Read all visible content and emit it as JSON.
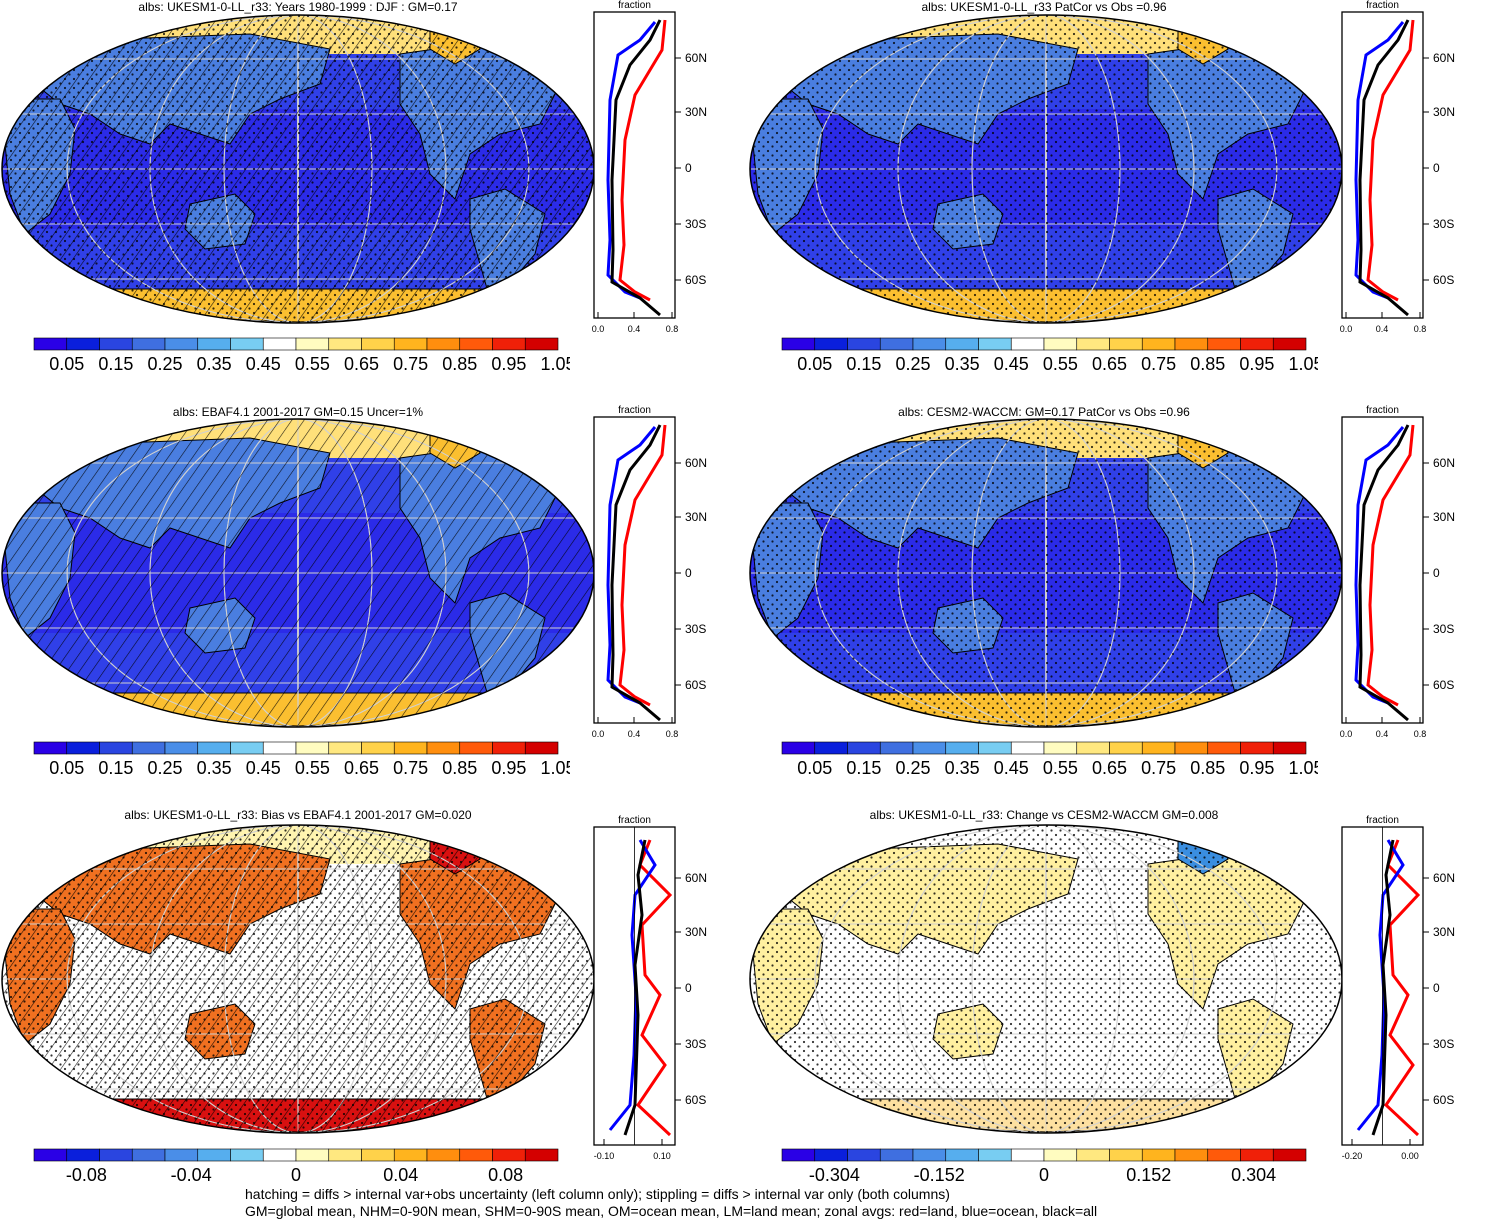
{
  "panels": [
    {
      "id": "p1",
      "title": "albs: UKESM1-0-LL_r33: Years 1980-1999 : DJF : GM=0.17",
      "scale": "abs",
      "hatch": true,
      "stipple": true
    },
    {
      "id": "p2",
      "title": "albs: UKESM1-0-LL_r33 PatCor vs Obs =0.96",
      "scale": "abs",
      "hatch": false,
      "stipple": true
    },
    {
      "id": "p3",
      "title": "albs: EBAF4.1 2001-2017 GM=0.15 Uncer=1%",
      "scale": "abs",
      "hatch": true,
      "stipple": false
    },
    {
      "id": "p4",
      "title": "albs: CESM2-WACCM: GM=0.17 PatCor vs Obs =0.96",
      "scale": "abs",
      "hatch": false,
      "stipple": true
    },
    {
      "id": "p5",
      "title": "albs: UKESM1-0-LL_r33: Bias vs EBAF4.1 2001-2017 GM=0.020",
      "scale": "bias",
      "hatch": true,
      "stipple": true
    },
    {
      "id": "p6",
      "title": "albs: UKESM1-0-LL_r33: Change vs CESM2-WACCM GM=0.008",
      "scale": "change",
      "hatch": false,
      "stipple": true
    }
  ],
  "zonal": {
    "header": "fraction",
    "lat_labels": [
      "60N",
      "30N",
      "0",
      "30S",
      "60S"
    ],
    "abs_ticks": [
      "0.0",
      "0.4",
      "0.8"
    ],
    "bias_ticks": [
      "-0.10",
      "0.10"
    ],
    "change_ticks": [
      "-0.20",
      "0.00"
    ],
    "line_colors": {
      "land": "#ff0000",
      "ocean": "#0000ff",
      "all": "#000000"
    }
  },
  "colorbars": {
    "abs_labels": [
      "0.05",
      "0.15",
      "0.25",
      "0.35",
      "0.45",
      "0.55",
      "0.65",
      "0.75",
      "0.85",
      "0.95",
      "1.05"
    ],
    "bias_labels": [
      "-0.08",
      "-0.04",
      "0",
      "0.04",
      "0.08"
    ],
    "change_labels": [
      "-0.304",
      "-0.152",
      "0",
      "0.152",
      "0.304"
    ],
    "colors": [
      "#2a00e6",
      "#0a1fdc",
      "#2a45e0",
      "#3f6fe0",
      "#4a8ee8",
      "#56aeee",
      "#78cdf2",
      "#ffffff",
      "#fffcc0",
      "#ffe880",
      "#ffd24a",
      "#ffb41e",
      "#ff8e0e",
      "#ff5a0a",
      "#f02008",
      "#d40000"
    ]
  },
  "footnote": {
    "line1": "hatching = diffs > internal var+obs uncertainty (left column only); stippling = diffs > internal var only (both columns)",
    "line2": "GM=global mean, NHM=0-90N mean, SHM=0-90S mean, OM=ocean mean, LM=land mean; zonal avgs: red=land, blue=ocean, black=all"
  }
}
